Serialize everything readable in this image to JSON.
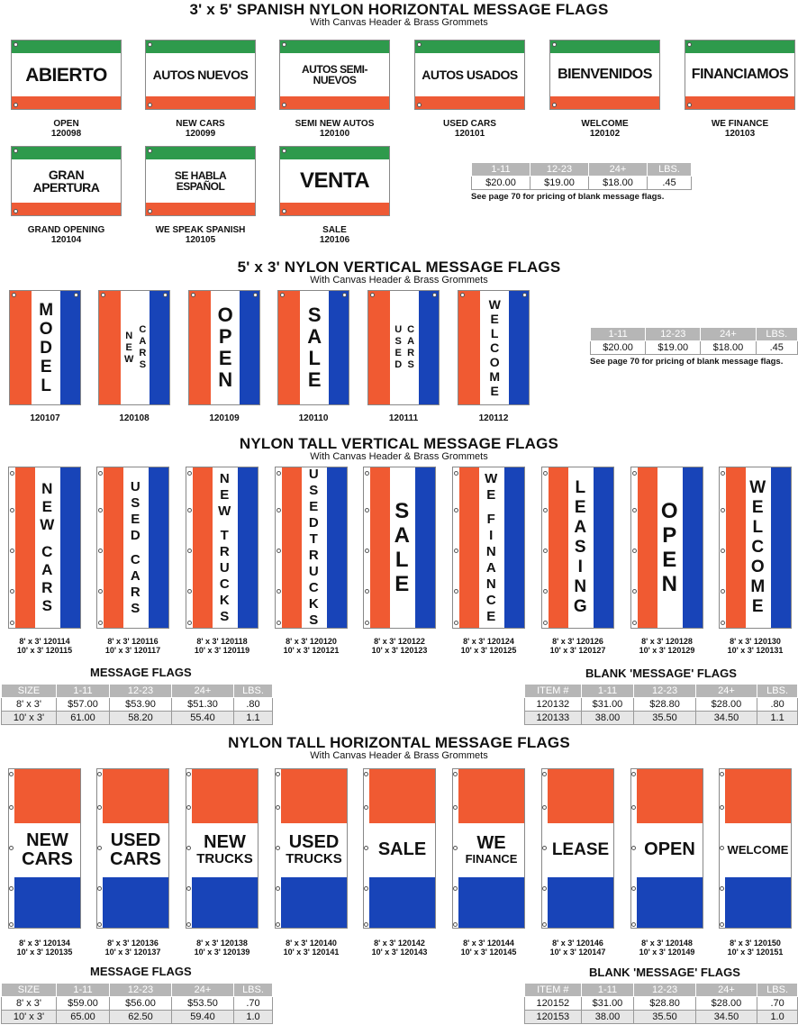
{
  "sections": {
    "spanish": {
      "title": "3' x 5' SPANISH NYLON HORIZONTAL MESSAGE FLAGS",
      "subtitle": "With Canvas Header & Brass Grommets"
    },
    "vertical": {
      "title": "5' x 3' NYLON VERTICAL MESSAGE FLAGS",
      "subtitle": "With Canvas Header & Brass Grommets"
    },
    "tall_vertical": {
      "title": "NYLON TALL VERTICAL MESSAGE FLAGS",
      "subtitle": "With Canvas Header & Brass Grommets"
    },
    "tall_horizontal": {
      "title": "NYLON TALL HORIZONTAL MESSAGE FLAGS",
      "subtitle": "With Canvas Header & Brass Grommets"
    }
  },
  "spanish_flags": [
    {
      "text": "ABIERTO",
      "name": "OPEN",
      "code": "120098"
    },
    {
      "text": "AUTOS NUEVOS",
      "name": "NEW CARS",
      "code": "120099"
    },
    {
      "text": "AUTOS SEMI-NUEVOS",
      "name": "SEMI NEW AUTOS",
      "code": "120100"
    },
    {
      "text": "AUTOS USADOS",
      "name": "USED CARS",
      "code": "120101"
    },
    {
      "text": "BIENVENIDOS",
      "name": "WELCOME",
      "code": "120102"
    },
    {
      "text": "FINANCIAMOS",
      "name": "WE FINANCE",
      "code": "120103"
    },
    {
      "text": "GRAN APERTURA",
      "name": "GRAND OPENING",
      "code": "120104"
    },
    {
      "text": "SE HABLA ESPAÑOL",
      "name": "WE SPEAK SPANISH",
      "code": "120105"
    },
    {
      "text": "VENTA",
      "name": "SALE",
      "code": "120106"
    }
  ],
  "price_small_1": {
    "headers": [
      "1-11",
      "12-23",
      "24+",
      "LBS."
    ],
    "row": [
      "$20.00",
      "$19.00",
      "$18.00",
      ".45"
    ],
    "note": "See page 70 for pricing of blank message flags."
  },
  "vertical_flags": [
    {
      "words": [
        "MODEL"
      ],
      "code": "120107"
    },
    {
      "words": [
        "NEW",
        "CARS"
      ],
      "code": "120108"
    },
    {
      "words": [
        "OPEN"
      ],
      "code": "120109"
    },
    {
      "words": [
        "SALE"
      ],
      "code": "120110"
    },
    {
      "words": [
        "USED",
        "CARS"
      ],
      "code": "120111"
    },
    {
      "words": [
        "WELCOME"
      ],
      "code": "120112"
    }
  ],
  "price_small_2": {
    "headers": [
      "1-11",
      "12-23",
      "24+",
      "LBS."
    ],
    "row": [
      "$20.00",
      "$19.00",
      "$18.00",
      ".45"
    ],
    "note": "See page 70 for pricing of blank message flags."
  },
  "tall_vertical_flags": [
    {
      "words": [
        "NEW",
        "CARS"
      ],
      "c8": "8' x 3' 120114",
      "c10": "10' x 3' 120115"
    },
    {
      "words": [
        "USED",
        "CARS"
      ],
      "c8": "8' x 3' 120116",
      "c10": "10' x 3' 120117"
    },
    {
      "words": [
        "NEW",
        "TRUCKS"
      ],
      "c8": "8' x 3' 120118",
      "c10": "10' x 3' 120119"
    },
    {
      "words": [
        "USED",
        "TRUCKS"
      ],
      "c8": "8' x 3' 120120",
      "c10": "10' x 3' 120121"
    },
    {
      "words": [
        "SALE"
      ],
      "c8": "8' x 3' 120122",
      "c10": "10' x 3' 120123"
    },
    {
      "words": [
        "WE",
        "FINANCE"
      ],
      "c8": "8' x 3' 120124",
      "c10": "10' x 3' 120125"
    },
    {
      "words": [
        "LEASING"
      ],
      "c8": "8' x 3' 120126",
      "c10": "10' x 3' 120127"
    },
    {
      "words": [
        "OPEN"
      ],
      "c8": "8' x 3' 120128",
      "c10": "10' x 3' 120129"
    },
    {
      "words": [
        "WELCOME"
      ],
      "c8": "8' x 3' 120130",
      "c10": "10' x 3' 120131"
    }
  ],
  "tall_vertical_message_table": {
    "title": "MESSAGE FLAGS",
    "headers": [
      "SIZE",
      "1-11",
      "12-23",
      "24+",
      "LBS."
    ],
    "rows": [
      [
        "8' x 3'",
        "$57.00",
        "$53.90",
        "$51.30",
        ".80"
      ],
      [
        "10' x 3'",
        "61.00",
        "58.20",
        "55.40",
        "1.1"
      ]
    ]
  },
  "tall_vertical_blank_table": {
    "title": "BLANK 'MESSAGE' FLAGS",
    "headers": [
      "ITEM #",
      "1-11",
      "12-23",
      "24+",
      "LBS."
    ],
    "rows": [
      [
        "120132",
        "$31.00",
        "$28.80",
        "$28.00",
        ".80"
      ],
      [
        "120133",
        "38.00",
        "35.50",
        "34.50",
        "1.1"
      ]
    ]
  },
  "tall_horizontal_flags": [
    {
      "lines": [
        "NEW",
        "CARS"
      ],
      "c8": "8' x 3' 120134",
      "c10": "10' x 3' 120135"
    },
    {
      "lines": [
        "USED",
        "CARS"
      ],
      "c8": "8' x 3' 120136",
      "c10": "10' x 3' 120137"
    },
    {
      "lines": [
        "NEW",
        "TRUCKS"
      ],
      "c8": "8' x 3' 120138",
      "c10": "10' x 3' 120139"
    },
    {
      "lines": [
        "USED",
        "TRUCKS"
      ],
      "c8": "8' x 3' 120140",
      "c10": "10' x 3' 120141"
    },
    {
      "lines": [
        "SALE"
      ],
      "c8": "8' x 3' 120142",
      "c10": "10' x 3' 120143"
    },
    {
      "lines": [
        "WE",
        "FINANCE"
      ],
      "c8": "8' x 3' 120144",
      "c10": "10' x 3' 120145"
    },
    {
      "lines": [
        "LEASE"
      ],
      "c8": "8' x 3' 120146",
      "c10": "10' x 3' 120147"
    },
    {
      "lines": [
        "OPEN"
      ],
      "c8": "8' x 3' 120148",
      "c10": "10' x 3' 120149"
    },
    {
      "lines": [
        "WELCOME"
      ],
      "c8": "8' x 3' 120150",
      "c10": "10' x 3' 120151"
    }
  ],
  "tall_horizontal_message_table": {
    "title": "MESSAGE FLAGS",
    "headers": [
      "SIZE",
      "1-11",
      "12-23",
      "24+",
      "LBS."
    ],
    "rows": [
      [
        "8' x 3'",
        "$59.00",
        "$56.00",
        "$53.50",
        ".70"
      ],
      [
        "10' x 3'",
        "65.00",
        "62.50",
        "59.40",
        "1.0"
      ]
    ]
  },
  "tall_horizontal_blank_table": {
    "title": "BLANK 'MESSAGE' FLAGS",
    "headers": [
      "ITEM #",
      "1-11",
      "12-23",
      "24+",
      "LBS."
    ],
    "rows": [
      [
        "120152",
        "$31.00",
        "$28.80",
        "$28.00",
        ".70"
      ],
      [
        "120153",
        "38.00",
        "35.50",
        "34.50",
        "1.0"
      ]
    ]
  },
  "colors": {
    "green": "#2e9a4c",
    "red": "#f05a32",
    "blue": "#1844b8",
    "table_header": "#b6b6b6"
  }
}
